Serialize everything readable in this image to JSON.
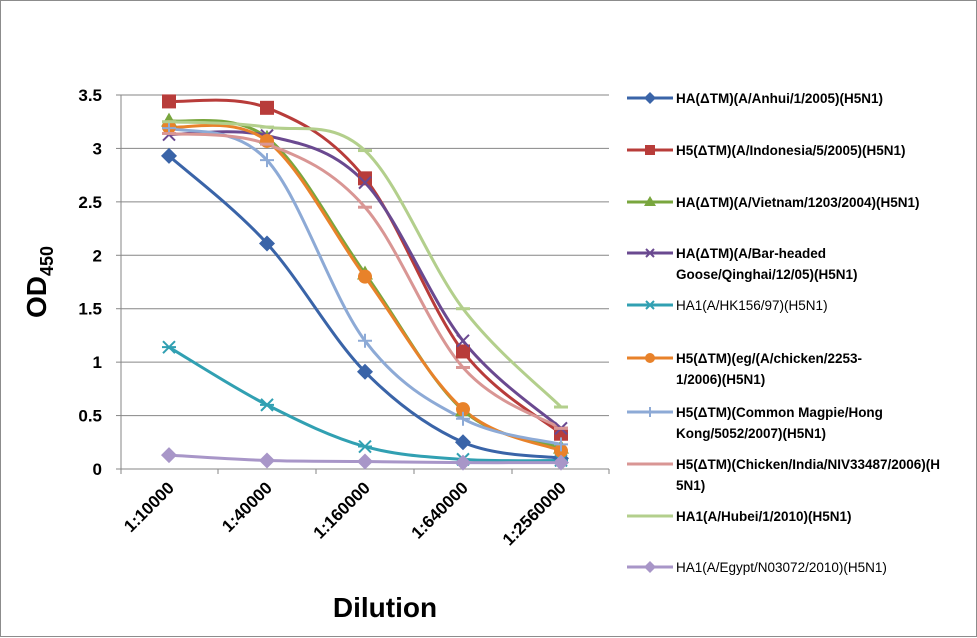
{
  "chart_data": {
    "type": "line",
    "title": "",
    "xlabel": "Dilution",
    "ylabel": "OD",
    "ylabel_subscript": "450",
    "categories": [
      "1:10000",
      "1:40000",
      "1:160000",
      "1:640000",
      "1:2560000"
    ],
    "ylim": [
      0,
      3.5
    ],
    "yticks": [
      "0",
      "0.5",
      "1",
      "1.5",
      "2",
      "2.5",
      "3",
      "3.5"
    ],
    "grid": "horizontal",
    "legend_position": "right",
    "series": [
      {
        "name": "HA(ΔTM)(A/Anhui/1/2005)(H5N1)",
        "legend_lines": [
          "HA(ΔTM)(A/Anhui/1/2005)(H5N1)"
        ],
        "bold": true,
        "color": "#3a64a8",
        "marker": "diamond",
        "values": [
          2.93,
          2.11,
          0.91,
          0.25,
          0.1
        ]
      },
      {
        "name": "H5(ΔTM)(A/Indonesia/5/2005)(H5N1)",
        "legend_lines": [
          "H5(ΔTM)(A/Indonesia/5/2005)(H5N1)"
        ],
        "bold": true,
        "color": "#b83c3a",
        "marker": "square",
        "values": [
          3.44,
          3.38,
          2.72,
          1.1,
          0.33
        ]
      },
      {
        "name": "HA(ΔTM)(A/Vietnam/1203/2004)(H5N1)",
        "legend_lines": [
          "HA(ΔTM)(A/Vietnam/1203/2004)(H5N1)"
        ],
        "bold": true,
        "color": "#79a63e",
        "marker": "triangle",
        "values": [
          3.26,
          3.1,
          1.83,
          0.55,
          0.2
        ]
      },
      {
        "name": "HA(ΔTM)(A/Bar-headed Goose/Qinghai/12/05)(H5N1)",
        "legend_lines": [
          "HA(ΔTM)(A/Bar-headed",
          "Goose/Qinghai/12/05)(H5N1)"
        ],
        "bold": true,
        "color": "#6a4990",
        "marker": "x",
        "values": [
          3.13,
          3.12,
          2.68,
          1.2,
          0.38
        ]
      },
      {
        "name": "HA1(A/HK156/97)(H5N1)",
        "legend_lines": [
          "HA1(A/HK156/97)(H5N1)"
        ],
        "bold": false,
        "color": "#31a0b2",
        "marker": "asterisk",
        "values": [
          1.14,
          0.6,
          0.21,
          0.09,
          0.08
        ]
      },
      {
        "name": "H5(ΔTM)eg/(A/chicken/2253-1/2006)(H5N1)",
        "legend_lines": [
          "H5(ΔTM)(eg/(A/chicken/2253-",
          "1/2006)(H5N1)"
        ],
        "bold": true,
        "color": "#e8822a",
        "marker": "circle",
        "values": [
          3.2,
          3.07,
          1.8,
          0.56,
          0.17
        ]
      },
      {
        "name": "H5(ΔTM)(Common Magpie/Hong Kong/5052/2007)(H5N1)",
        "legend_lines": [
          "H5(ΔTM)(Common Magpie/Hong",
          "Kong/5052/2007)(H5N1)"
        ],
        "bold": true,
        "color": "#8daad6",
        "marker": "plus",
        "values": [
          3.19,
          2.89,
          1.2,
          0.47,
          0.23
        ]
      },
      {
        "name": "H5(ΔTM)(Chicken/India/NIV33487/2006)(H5N1)",
        "legend_lines": [
          "H5(ΔTM)(Chicken/India/NIV33487/2006)(H",
          "5N1)"
        ],
        "bold": true,
        "color": "#d99694",
        "marker": "dash",
        "values": [
          3.14,
          3.04,
          2.45,
          0.95,
          0.38
        ]
      },
      {
        "name": "HA1(A/Hubei/1/2010)(H5N1)",
        "legend_lines": [
          "HA1(A/Hubei/1/2010)(H5N1)"
        ],
        "bold": true,
        "color": "#b3cf8c",
        "marker": "dash",
        "values": [
          3.25,
          3.2,
          2.98,
          1.5,
          0.58
        ]
      },
      {
        "name": "HA1(A/Egypt/N03072/2010)(H5N1)",
        "legend_lines": [
          "HA1(A/Egypt/N03072/2010)(H5N1)"
        ],
        "bold": false,
        "color": "#a896c8",
        "marker": "diamond",
        "values": [
          0.13,
          0.08,
          0.07,
          0.06,
          0.06
        ]
      }
    ]
  }
}
